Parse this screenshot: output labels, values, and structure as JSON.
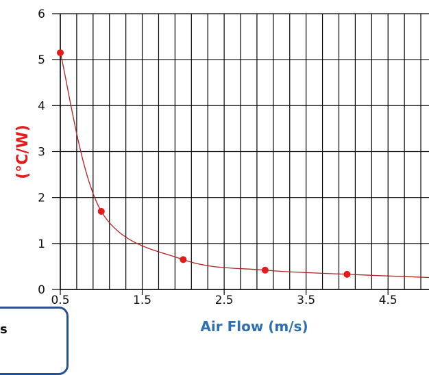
{
  "chart_data": {
    "type": "line",
    "title": "",
    "xlabel": "Air Flow (m/s)",
    "ylabel": "(°C/W)",
    "xlim": [
      0.5,
      5.0
    ],
    "ylim": [
      0,
      6
    ],
    "x_ticks": [
      "0.5",
      "1.5",
      "2.5",
      "3.5",
      "4.5"
    ],
    "y_ticks": [
      "0",
      "1",
      "2",
      "3",
      "4",
      "5",
      "6"
    ],
    "grid": true,
    "series": [
      {
        "x": [
          0.5,
          1.0,
          2.0,
          3.0,
          4.0
        ],
        "y": [
          5.15,
          1.7,
          0.65,
          0.42,
          0.33
        ],
        "curve_end": [
          5.0,
          0.26
        ]
      }
    ],
    "colors": {
      "series": "#e41b1b",
      "curve": "#b02020",
      "axis_title": "#e41b1b",
      "legend_border": "#2a4f8f"
    }
  },
  "legend": {
    "partial_text": "s"
  }
}
